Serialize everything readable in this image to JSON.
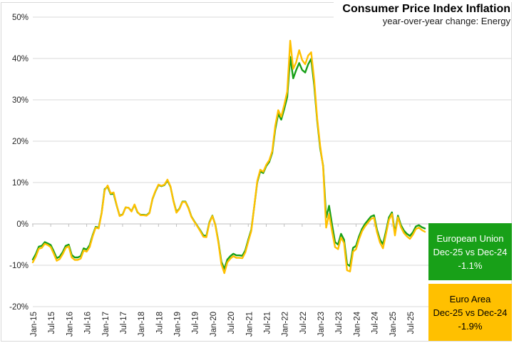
{
  "title": "Consumer Price Index Inflation",
  "subtitle": "year-over-year change: Energy",
  "colors": {
    "eu_green": "#18A018",
    "ea_yellow": "#FFC000",
    "gridline": "#D9D9D9",
    "axis": "#BFBFBF",
    "tick_label": "#262626",
    "border": "#D9D9D9"
  },
  "legend": {
    "eu": {
      "name": "European Union",
      "comparison": "Dec-25 vs Dec-24",
      "value": "-1.1%"
    },
    "ea": {
      "name": "Euro Area",
      "comparison": "Dec-25 vs Dec-24",
      "value": "-1.9%"
    }
  },
  "chart_data": {
    "type": "line",
    "title": "Consumer Price Index Inflation",
    "subtitle": "year-over-year change: Energy",
    "x_start_month": "Jan-15",
    "x_end_month": "Dec-25",
    "x_tick_interval_months": 6,
    "x_tick_labels": [
      "Jan-15",
      "Jul-15",
      "Jan-16",
      "Jul-16",
      "Jan-17",
      "Jul-17",
      "Jan-18",
      "Jul-18",
      "Jan-19",
      "Jul-19",
      "Jan-20",
      "Jul-20",
      "Jan-21",
      "Jul-21",
      "Jan-22",
      "Jul-22",
      "Jan-23",
      "Jul-23",
      "Jan-24",
      "Jul-24",
      "Jan-25",
      "Jul-25"
    ],
    "y_ticks": [
      50,
      40,
      30,
      20,
      10,
      0,
      -10,
      -20
    ],
    "y_tick_labels": [
      "50%",
      "40%",
      "30%",
      "20%",
      "10%",
      "0%",
      "-10%",
      "-20%"
    ],
    "ylim": [
      -20,
      50
    ],
    "grid": true,
    "legend_position": "right",
    "unit": "percent year-over-year",
    "series": [
      {
        "name": "European Union",
        "color": "#18A018",
        "values": [
          -8.6,
          -7.3,
          -5.5,
          -5.3,
          -4.4,
          -4.7,
          -5.1,
          -6.6,
          -8.3,
          -7.9,
          -6.8,
          -5.3,
          -5.0,
          -7.5,
          -8.1,
          -8.1,
          -7.8,
          -5.9,
          -6.2,
          -5.1,
          -2.7,
          -0.7,
          -0.9,
          2.7,
          8.4,
          9.0,
          7.2,
          7.3,
          4.5,
          2.0,
          2.3,
          4.0,
          3.9,
          3.1,
          4.6,
          2.8,
          2.2,
          2.2,
          2.1,
          2.7,
          6.0,
          7.9,
          9.4,
          9.1,
          9.4,
          10.5,
          9.0,
          5.6,
          2.9,
          3.7,
          5.4,
          5.4,
          3.9,
          1.8,
          0.6,
          -0.5,
          -1.6,
          -2.8,
          -2.9,
          0.4,
          2.0,
          -0.2,
          -4.2,
          -9.1,
          -10.9,
          -8.6,
          -7.8,
          -7.2,
          -7.6,
          -7.6,
          -7.7,
          -6.4,
          -3.8,
          -1.4,
          4.3,
          10.1,
          12.7,
          12.3,
          14.0,
          15.0,
          17.2,
          22.9,
          26.6,
          25.2,
          27.8,
          30.7,
          40.4,
          35.2,
          37.2,
          38.9,
          37.2,
          36.6,
          38.6,
          39.9,
          33.6,
          25.0,
          18.3,
          14.0,
          1.5,
          4.4,
          -0.2,
          -4.4,
          -5.0,
          -2.4,
          -3.8,
          -9.7,
          -10.2,
          -5.8,
          -5.3,
          -3.0,
          -1.2,
          0.0,
          0.9,
          1.8,
          2.1,
          -1.4,
          -3.8,
          -4.9,
          -1.8,
          1.6,
          2.8,
          -2.2,
          2.0,
          -0.3,
          -1.6,
          -2.4,
          -2.9,
          -2.0,
          -0.6,
          -0.3,
          -0.8,
          -1.1
        ]
      },
      {
        "name": "Euro Area",
        "color": "#FFC000",
        "values": [
          -9.3,
          -7.9,
          -6.0,
          -5.8,
          -4.8,
          -5.1,
          -5.6,
          -7.2,
          -8.9,
          -8.5,
          -7.3,
          -5.8,
          -5.4,
          -8.1,
          -8.7,
          -8.7,
          -8.4,
          -6.4,
          -6.7,
          -5.6,
          -3.0,
          -0.9,
          -1.1,
          2.6,
          8.1,
          9.3,
          7.4,
          7.6,
          4.6,
          1.9,
          2.2,
          4.0,
          3.9,
          3.0,
          4.7,
          2.9,
          2.1,
          2.1,
          2.0,
          2.6,
          6.1,
          8.0,
          9.5,
          9.2,
          9.5,
          10.7,
          9.1,
          5.5,
          2.7,
          3.6,
          5.3,
          5.3,
          3.8,
          1.7,
          0.5,
          -0.6,
          -1.8,
          -3.1,
          -3.2,
          0.2,
          1.9,
          -0.3,
          -4.5,
          -9.7,
          -11.9,
          -9.3,
          -8.4,
          -7.8,
          -8.2,
          -8.2,
          -8.3,
          -6.9,
          -4.2,
          -1.7,
          4.3,
          10.4,
          13.1,
          12.6,
          14.3,
          15.4,
          17.6,
          23.7,
          27.5,
          25.9,
          28.8,
          32.0,
          44.3,
          37.5,
          39.1,
          42.0,
          39.6,
          38.6,
          40.7,
          41.5,
          34.9,
          25.5,
          18.9,
          13.7,
          -0.9,
          2.4,
          -1.8,
          -5.6,
          -6.1,
          -3.3,
          -4.6,
          -11.2,
          -11.5,
          -6.7,
          -6.1,
          -3.7,
          -1.8,
          -0.6,
          0.3,
          1.2,
          1.5,
          -2.0,
          -4.5,
          -5.9,
          -2.5,
          1.0,
          2.4,
          -2.8,
          1.6,
          -0.8,
          -2.2,
          -3.0,
          -3.6,
          -2.6,
          -1.2,
          -0.9,
          -1.5,
          -1.9
        ]
      }
    ],
    "annotations": [
      {
        "series": "European Union",
        "label": "Dec-25 vs Dec-24",
        "value": "-1.1%"
      },
      {
        "series": "Euro Area",
        "label": "Dec-25 vs Dec-24",
        "value": "-1.9%"
      }
    ]
  }
}
